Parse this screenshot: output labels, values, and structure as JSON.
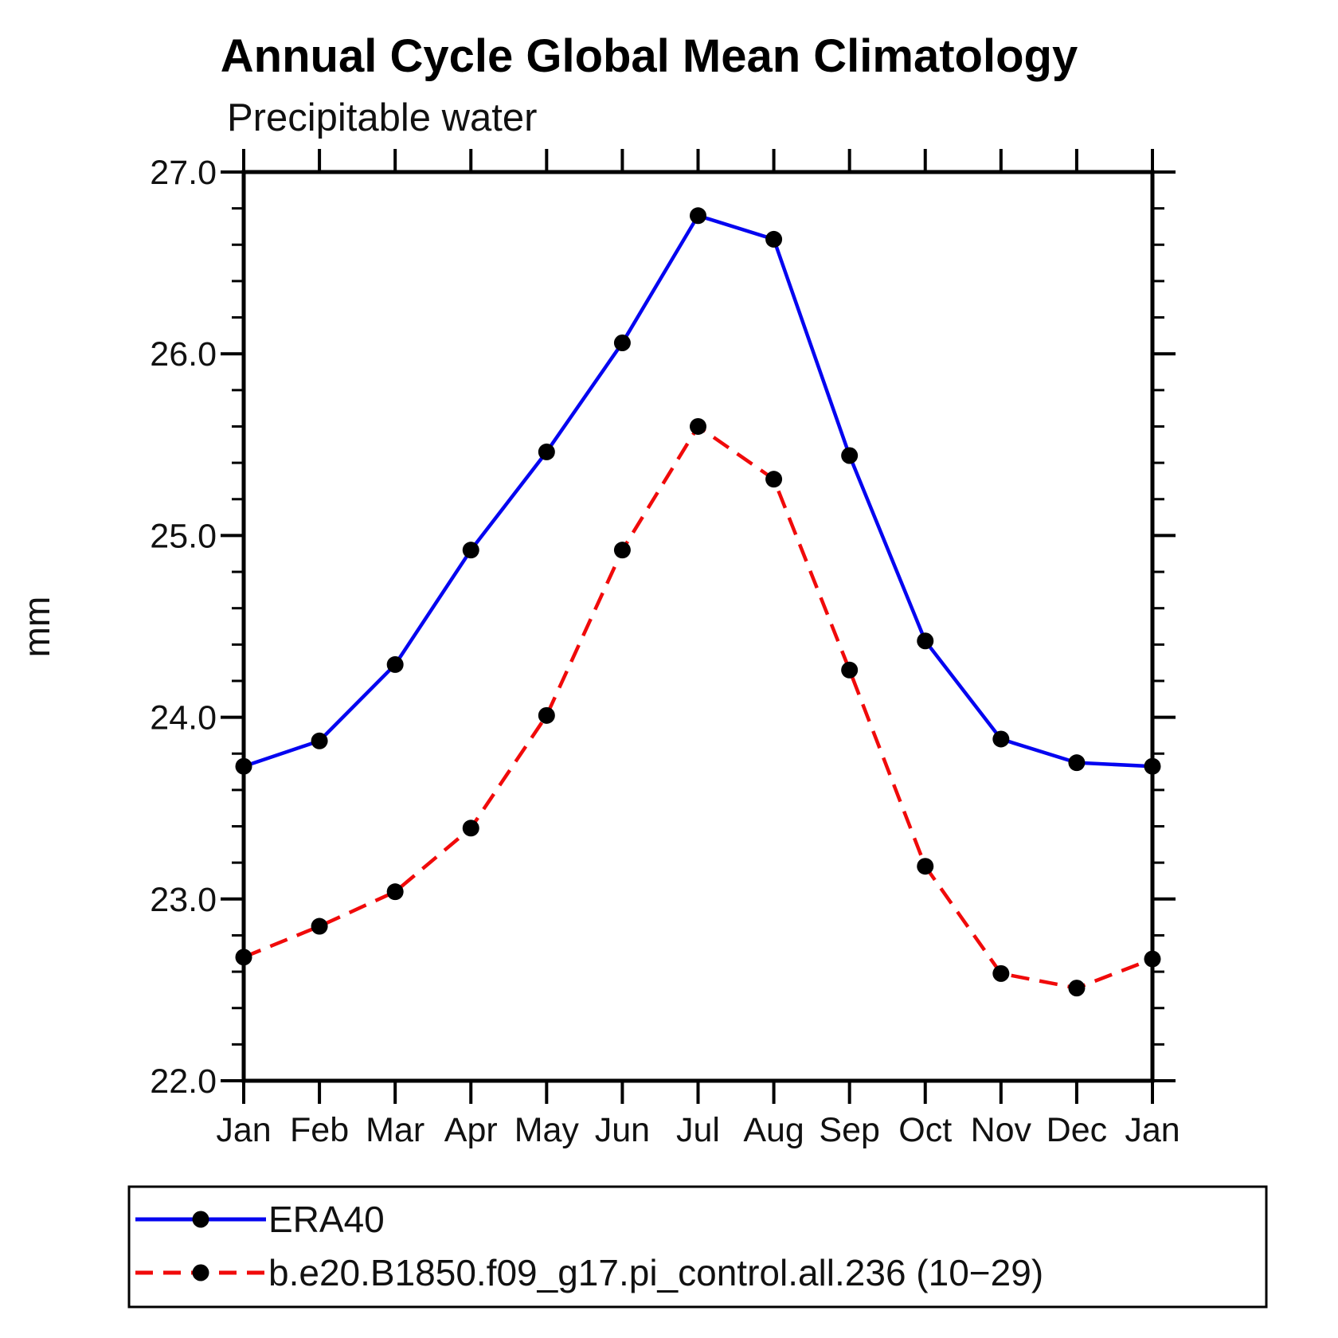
{
  "title": "Annual Cycle Global Mean Climatology",
  "subtitle": "Precipitable water",
  "y_axis_label": "mm",
  "legend": {
    "entries": [
      {
        "label": "ERA40"
      },
      {
        "label": "b.e20.B1850.f09_g17.pi_control.all.236 (10−29)"
      }
    ]
  },
  "chart_data": {
    "type": "line",
    "categories": [
      "Jan",
      "Feb",
      "Mar",
      "Apr",
      "May",
      "Jun",
      "Jul",
      "Aug",
      "Sep",
      "Oct",
      "Nov",
      "Dec",
      "Jan"
    ],
    "series": [
      {
        "name": "ERA40",
        "color": "#0505f0",
        "line_style": "solid",
        "marker": "filled-circle",
        "marker_color": "#000000",
        "values": [
          23.73,
          23.87,
          24.29,
          24.92,
          25.46,
          26.06,
          26.76,
          26.63,
          25.44,
          24.42,
          23.88,
          23.75,
          23.73
        ]
      },
      {
        "name": "b.e20.B1850.f09_g17.pi_control.all.236 (10−29)",
        "color": "#f00a0a",
        "line_style": "dashed",
        "marker": "filled-circle",
        "marker_color": "#000000",
        "values": [
          22.68,
          22.85,
          23.04,
          23.39,
          24.01,
          24.92,
          25.6,
          25.31,
          24.26,
          23.18,
          22.59,
          22.51,
          22.67
        ]
      }
    ],
    "xlabel": "",
    "ylabel": "mm",
    "ylim": [
      22.0,
      27.0
    ],
    "ytick_major": [
      22.0,
      23.0,
      24.0,
      25.0,
      26.0,
      27.0
    ],
    "ytick_labels": [
      "22.0",
      "23.0",
      "24.0",
      "25.0",
      "26.0",
      "27.0"
    ],
    "ytick_minor_step": 0.2,
    "grid": "off",
    "legend_position": "bottom-left-box"
  }
}
